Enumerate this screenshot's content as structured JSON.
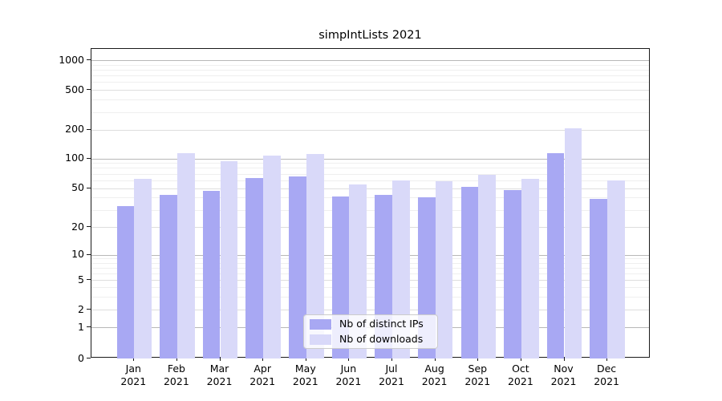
{
  "chart_data": {
    "type": "bar",
    "title": "simpIntLists 2021",
    "categories": [
      "Jan 2021",
      "Feb 2021",
      "Mar 2021",
      "Apr 2021",
      "May 2021",
      "Jun 2021",
      "Jul 2021",
      "Aug 2021",
      "Sep 2021",
      "Oct 2021",
      "Nov 2021",
      "Dec 2021"
    ],
    "series": [
      {
        "name": "Nb of distinct IPs",
        "color": "#a8a8f3",
        "values": [
          33,
          43,
          47,
          63,
          66,
          41,
          43,
          40,
          51,
          48,
          113,
          39
        ]
      },
      {
        "name": "Nb of downloads",
        "color": "#d9d9f9",
        "values": [
          62,
          113,
          93,
          107,
          112,
          54,
          60,
          59,
          68,
          62,
          205,
          60
        ]
      }
    ],
    "xlabel": "",
    "ylabel": "",
    "yscale": "pseudo-log",
    "y_ticks": [
      0,
      1,
      2,
      5,
      10,
      20,
      50,
      100,
      200,
      500,
      1000
    ],
    "ylim": [
      0,
      1320
    ],
    "grid": "horizontal, major and minor",
    "legend_position": "lower center"
  }
}
